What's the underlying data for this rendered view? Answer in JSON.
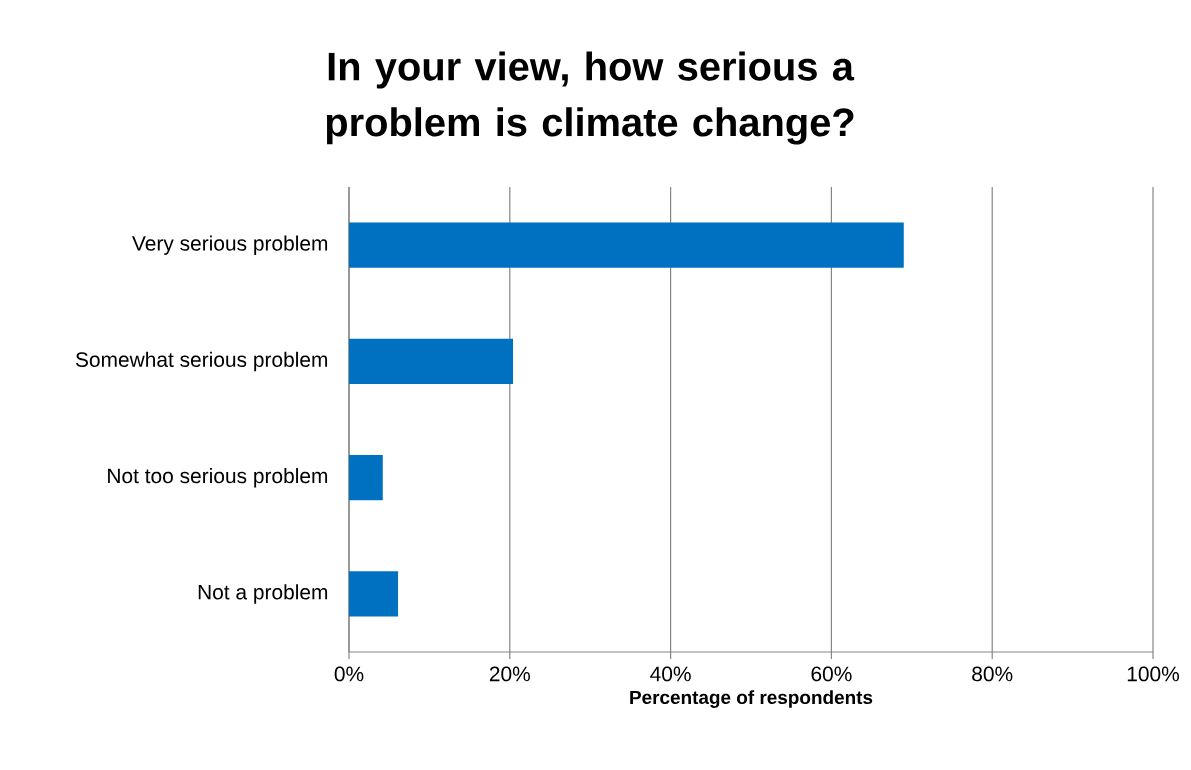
{
  "chart_data": {
    "type": "bar",
    "orientation": "horizontal",
    "title": "In your view, how serious a problem is climate change?",
    "xlabel": "Percentage of respondents",
    "categories": [
      "Very serious problem",
      "Somewhat serious problem",
      "Not too serious problem",
      "Not a problem"
    ],
    "values": [
      69.0,
      20.4,
      4.2,
      6.1
    ],
    "color": "#0070c0",
    "xlim": [
      0,
      100
    ],
    "xticks": [
      {
        "value": 0,
        "label": "0%"
      },
      {
        "value": 20,
        "label": "20%"
      },
      {
        "value": 40,
        "label": "40%"
      },
      {
        "value": 60,
        "label": "60%"
      },
      {
        "value": 80,
        "label": "80%"
      },
      {
        "value": 100,
        "label": "100%"
      }
    ],
    "grid": "x"
  }
}
